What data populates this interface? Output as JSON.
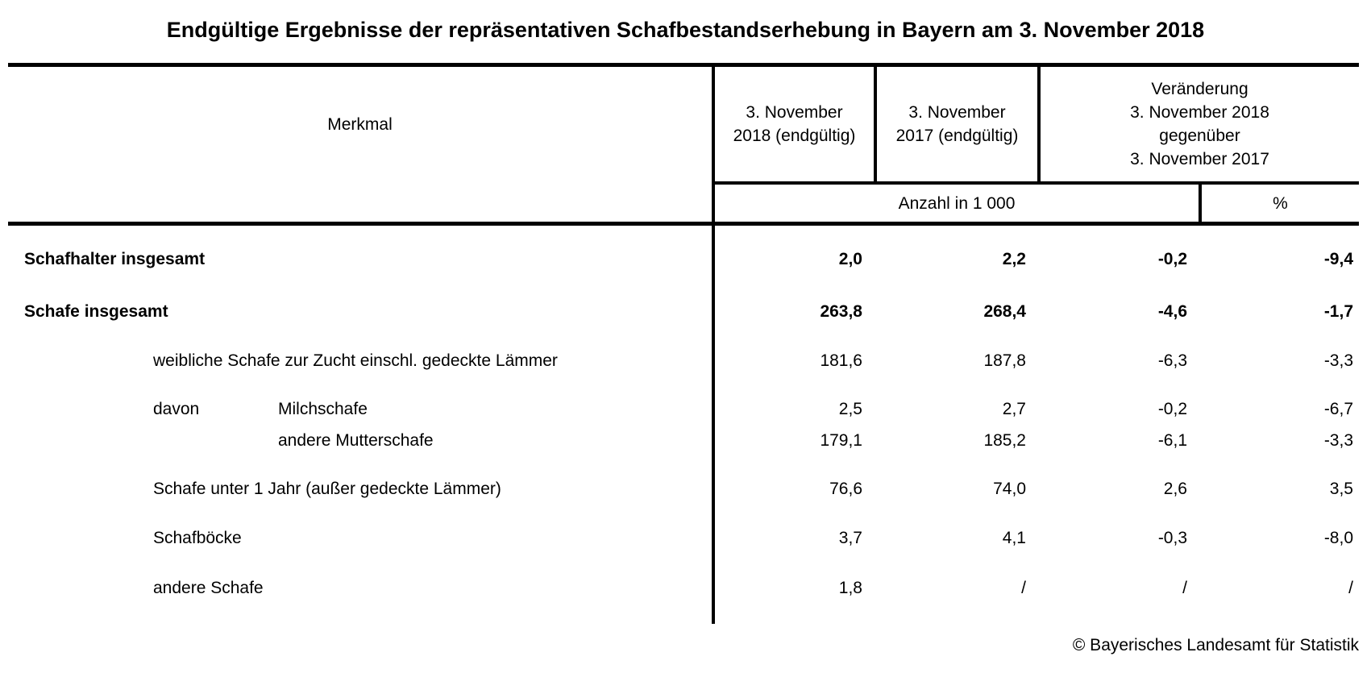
{
  "title": "Endgültige Ergebnisse der repräsentativen Schafbestandserhebung in Bayern am 3. November 2018",
  "table": {
    "header": {
      "merkmal": "Merkmal",
      "nov2018": "3. November\n2018 (endgültig)",
      "nov2017": "3. November\n2017 (endgültig)",
      "veraenderung": "Veränderung\n3. November 2018\ngegenüber\n3. November 2017",
      "unit_count": "Anzahl in 1 000",
      "unit_percent": "%"
    },
    "rows": [
      {
        "label": "Schafhalter insgesamt",
        "values": [
          "2,0",
          "2,2",
          "-0,2",
          "-9,4"
        ]
      },
      {
        "label": "Schafe insgesamt",
        "values": [
          "263,8",
          "268,4",
          "-4,6",
          "-1,7"
        ]
      },
      {
        "label": "weibliche Schafe zur Zucht einschl. gedeckte Lämmer",
        "values": [
          "181,6",
          "187,8",
          "-6,3",
          "-3,3"
        ]
      },
      {
        "prefix": "davon",
        "label": "Milchschafe",
        "values": [
          "2,5",
          "2,7",
          "-0,2",
          "-6,7"
        ]
      },
      {
        "label": "andere Mutterschafe",
        "values": [
          "179,1",
          "185,2",
          "-6,1",
          "-3,3"
        ]
      },
      {
        "label": "Schafe unter 1 Jahr (außer gedeckte Lämmer)",
        "values": [
          "76,6",
          "74,0",
          "2,6",
          "3,5"
        ]
      },
      {
        "label": "Schafböcke",
        "values": [
          "3,7",
          "4,1",
          "-0,3",
          "-8,0"
        ]
      },
      {
        "label": "andere Schafe",
        "values": [
          "1,8",
          "/",
          "/",
          "/"
        ]
      }
    ]
  },
  "footer": {
    "copyright": "© Bayerisches Landesamt für Statistik"
  }
}
